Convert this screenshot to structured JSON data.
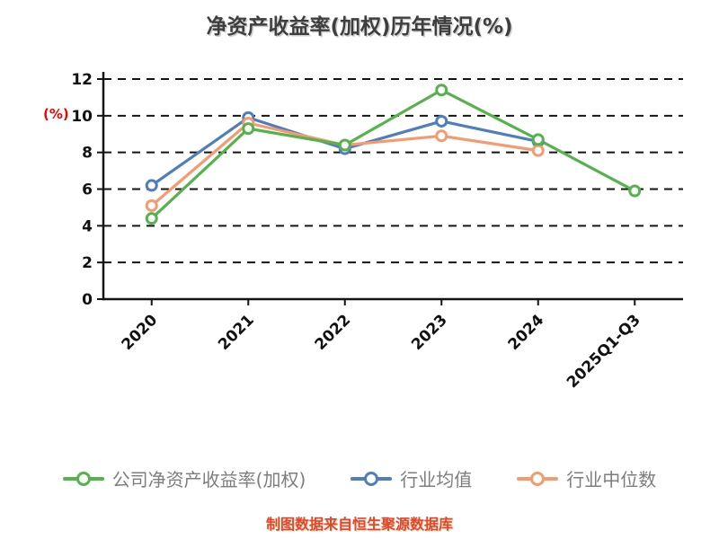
{
  "chart_data": {
    "type": "line",
    "title": "净资产收益率(加权)历年情况(%)",
    "ylabel": "(%)",
    "categories": [
      "2020",
      "2021",
      "2022",
      "2023",
      "2024",
      "2025Q1-Q3"
    ],
    "series": [
      {
        "name": "公司净资产收益率(加权)",
        "color": "#56b24c",
        "values": [
          4.4,
          9.3,
          8.4,
          11.4,
          8.7,
          5.9
        ]
      },
      {
        "name": "行业均值",
        "color": "#4f7dbe",
        "values": [
          6.2,
          9.9,
          8.2,
          9.7,
          8.6,
          null
        ]
      },
      {
        "name": "行业中位数",
        "color": "#f59b72",
        "values": [
          5.1,
          9.6,
          8.4,
          8.9,
          8.1,
          null
        ]
      }
    ],
    "ylim": [
      0,
      12
    ],
    "yticks": [
      0,
      2,
      4,
      6,
      8,
      10,
      12
    ],
    "grid": "horizontal-dashed",
    "legend_position": "bottom",
    "marker_style": "open-circle"
  },
  "footer": {
    "source_text": "制图数据来自恒生聚源数据库"
  }
}
